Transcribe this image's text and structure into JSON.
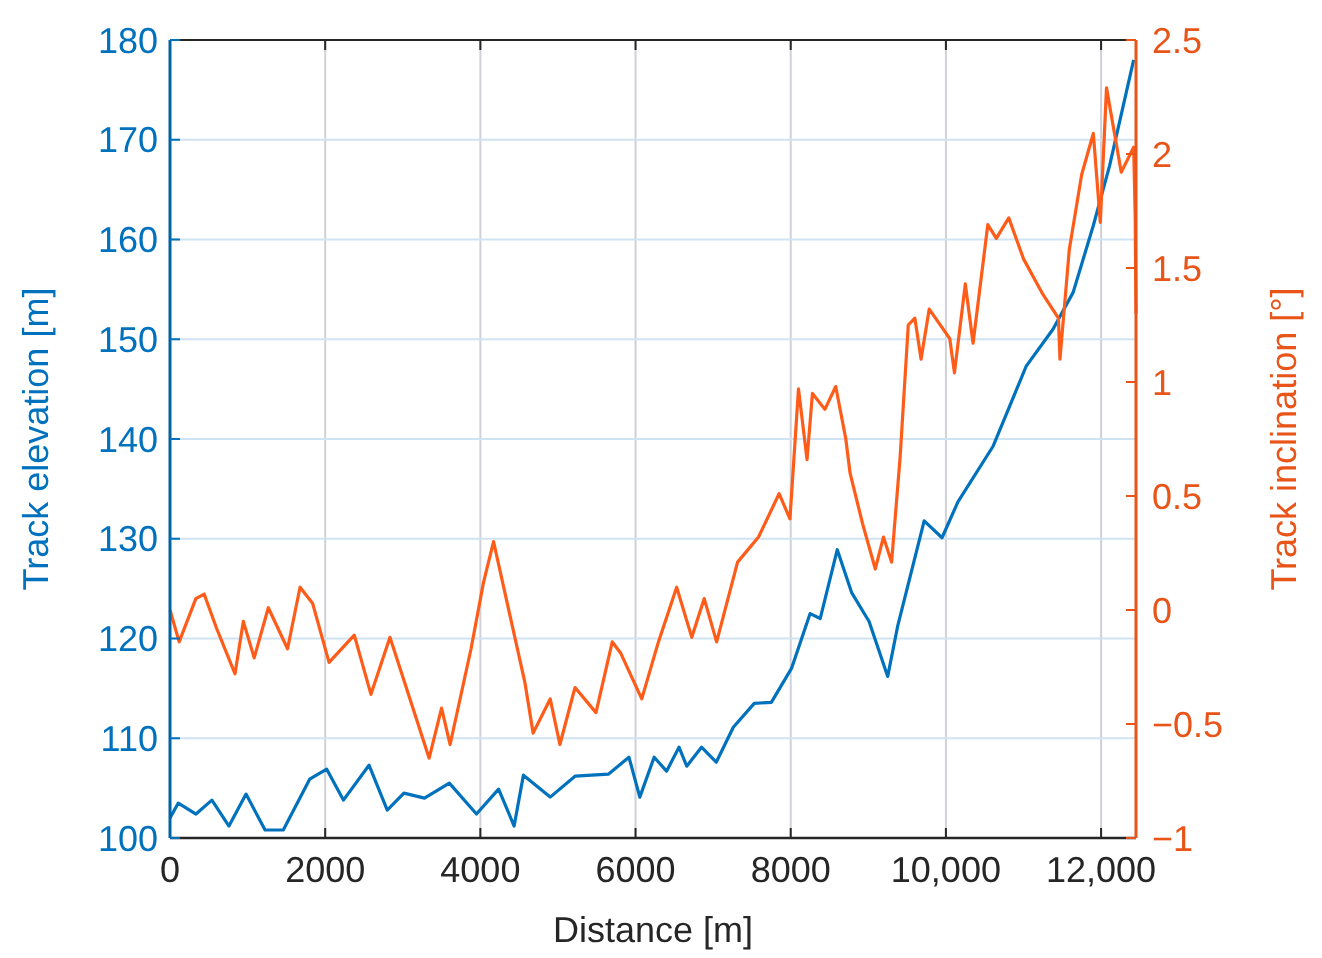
{
  "chart_data": {
    "type": "line",
    "xlabel": "Distance [m]",
    "ylabel": "Track elevation [m]",
    "y2label": "Track inclination [°]",
    "grid": true,
    "xlim": [
      0,
      12450
    ],
    "xticks": [
      0,
      2000,
      4000,
      6000,
      8000,
      {
        "value": 10000,
        "label": "10,000"
      },
      {
        "value": 12000,
        "label": "12,000"
      }
    ],
    "ylim": [
      100,
      180
    ],
    "yticks": [
      100,
      110,
      120,
      130,
      140,
      150,
      160,
      170,
      180
    ],
    "y2lim": [
      -1,
      2.5
    ],
    "y2ticks": [
      {
        "value": -1,
        "label": "−1"
      },
      {
        "value": -0.5,
        "label": "−0.5"
      },
      0,
      0.5,
      1,
      1.5,
      2,
      2.5
    ],
    "series": [
      {
        "color": "#0072bd",
        "x": [
          0,
          107,
          335,
          540,
          760,
          980,
          1225,
          1460,
          1800,
          2020,
          2235,
          2565,
          2800,
          3015,
          3280,
          3600,
          3950,
          4235,
          4435,
          4555,
          4900,
          5220,
          5650,
          5915,
          6055,
          6240,
          6400,
          6560,
          6660,
          6850,
          7040,
          7260,
          7530,
          7750,
          8010,
          8250,
          8380,
          8600,
          8785,
          9010,
          9250,
          9380,
          9720,
          9950,
          10155,
          10610,
          11035,
          11380,
          11640,
          11900,
          12110,
          12420
        ],
        "values": [
          102.0,
          103.5,
          102.4,
          103.8,
          101.2,
          104.4,
          100.8,
          100.8,
          105.9,
          106.9,
          103.8,
          107.3,
          102.8,
          104.5,
          104.0,
          105.5,
          102.4,
          104.9,
          101.2,
          106.3,
          104.1,
          106.2,
          106.4,
          108.1,
          104.1,
          108.1,
          106.7,
          109.1,
          107.2,
          109.1,
          107.6,
          111.1,
          113.5,
          113.6,
          117.0,
          122.5,
          122.0,
          128.9,
          124.6,
          121.7,
          116.2,
          121.3,
          131.8,
          130.1,
          133.7,
          139.3,
          147.3,
          151.0,
          154.7,
          161.4,
          167.4,
          178.0
        ]
      },
      {
        "color": "#ff5c1a",
        "axis": "y2",
        "x": [
          0,
          118,
          333,
          440,
          600,
          838,
          945,
          1085,
          1267,
          1515,
          1676,
          1837,
          2050,
          2375,
          2590,
          2835,
          3340,
          3500,
          3610,
          3880,
          4040,
          4170,
          4575,
          4680,
          4900,
          5025,
          5220,
          5490,
          5700,
          5810,
          6080,
          6295,
          6530,
          6725,
          6885,
          7045,
          7315,
          7585,
          7850,
          7990,
          8100,
          8210,
          8280,
          8440,
          8580,
          8710,
          8765,
          8925,
          9090,
          9195,
          9300,
          9410,
          9515,
          9600,
          9680,
          9785,
          10050,
          10110,
          10250,
          10350,
          10540,
          10650,
          10810,
          11000,
          11240,
          11450,
          11470,
          11590,
          11750,
          11900,
          11990,
          12070,
          12260,
          12420,
          12440,
          12450
        ],
        "values": [
          0.0,
          -0.14,
          0.05,
          0.07,
          -0.08,
          -0.28,
          -0.05,
          -0.21,
          0.01,
          -0.17,
          0.1,
          0.03,
          -0.23,
          -0.11,
          -0.37,
          -0.12,
          -0.65,
          -0.43,
          -0.59,
          -0.17,
          0.12,
          0.3,
          -0.32,
          -0.54,
          -0.39,
          -0.59,
          -0.34,
          -0.45,
          -0.14,
          -0.19,
          -0.39,
          -0.14,
          0.1,
          -0.12,
          0.05,
          -0.14,
          0.21,
          0.32,
          0.51,
          0.4,
          0.97,
          0.66,
          0.95,
          0.88,
          0.98,
          0.75,
          0.6,
          0.38,
          0.18,
          0.32,
          0.21,
          0.67,
          1.25,
          1.28,
          1.1,
          1.32,
          1.19,
          1.04,
          1.43,
          1.17,
          1.69,
          1.63,
          1.72,
          1.54,
          1.39,
          1.28,
          1.1,
          1.58,
          1.91,
          2.09,
          1.7,
          2.29,
          1.92,
          2.03,
          1.72,
          1.3
        ]
      }
    ]
  }
}
